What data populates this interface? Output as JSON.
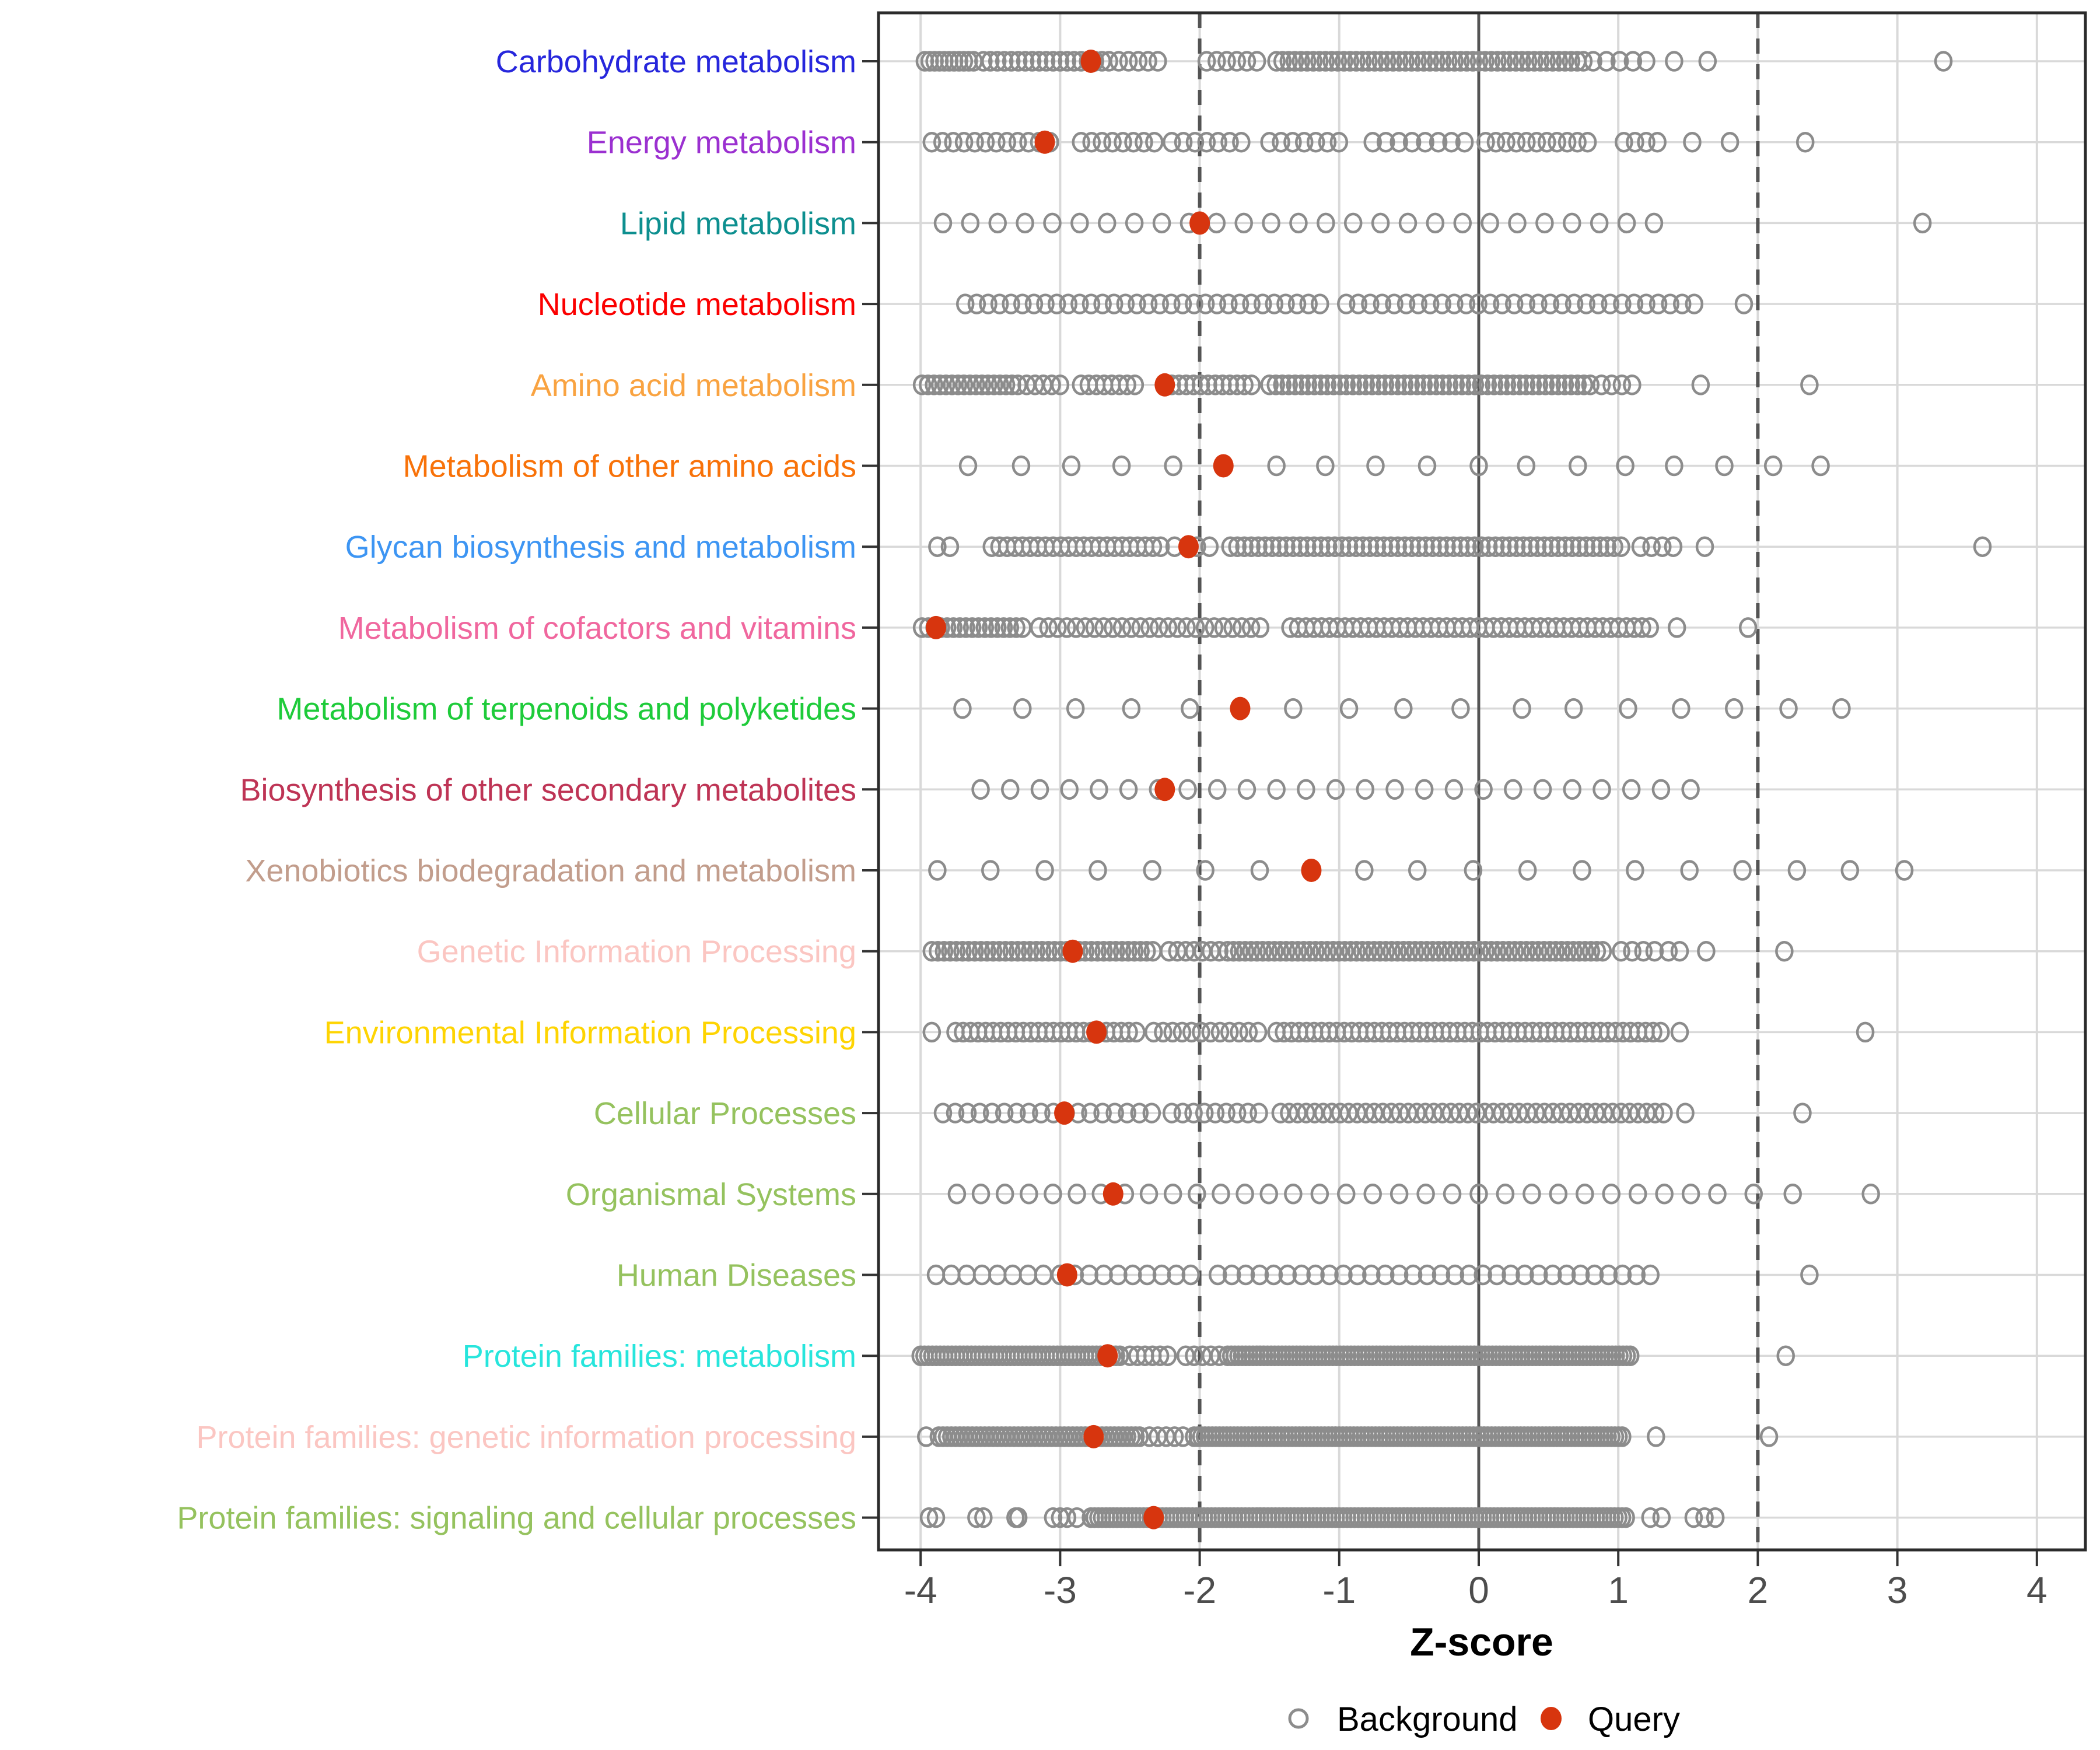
{
  "chart_data": {
    "type": "scatter",
    "title": "",
    "xlabel": "Z-score",
    "ylabel": "",
    "xlim": [
      -4.3,
      4.38
    ],
    "x_ticks": [
      -4,
      -3,
      -2,
      -1,
      0,
      1,
      2,
      3,
      4
    ],
    "grid": "major light gray, vertical at each integer and horizontal at each category row",
    "reference_lines": {
      "solid": [
        0
      ],
      "dashed": [
        -2,
        2
      ]
    },
    "legend_position": "bottom",
    "legend": [
      {
        "label": "Background",
        "marker": "open-circle",
        "color": "#8C8C8C"
      },
      {
        "label": "Query",
        "marker": "filled-circle",
        "color": "#D7350E"
      }
    ],
    "series_note": "Each category row is a 1-D strip of Background z-scores (open circles, values estimated from pixels; runs are [from,to,step] expansions) plus one red Query z-score (null = no query point shown).",
    "categories": [
      {
        "label": "Carbohydrate metabolism",
        "color": "#2626DC",
        "query": -2.78,
        "background_runs": [
          [
            -3.97,
            -3.62,
            0.035
          ],
          [
            -3.55,
            -2.62,
            0.05
          ],
          [
            -2.58,
            -2.3,
            0.07
          ],
          [
            -1.95,
            -1.52,
            0.072
          ],
          [
            -1.45,
            0.75,
            0.044
          ],
          [
            0.82,
            1.2,
            0.095
          ]
        ],
        "background_points": [
          1.4,
          1.64,
          3.33
        ]
      },
      {
        "label": "Energy metabolism",
        "color": "#9B30D0",
        "query": -3.11,
        "background_runs": [
          [
            -3.92,
            -3.0,
            0.077
          ],
          [
            -2.85,
            -2.32,
            0.075
          ],
          [
            -2.2,
            -1.62,
            0.083
          ],
          [
            -1.5,
            -0.92,
            0.083
          ],
          [
            -0.76,
            -0.1,
            0.094
          ],
          [
            0.05,
            0.78,
            0.073
          ],
          [
            1.04,
            1.28,
            0.08
          ]
        ],
        "background_points": [
          1.53,
          1.8,
          2.34
        ]
      },
      {
        "label": "Lipid metabolism",
        "color": "#0D8F8F",
        "query": -2.0,
        "background_runs": [
          [
            -3.84,
            1.32,
            0.196
          ]
        ],
        "background_points": [
          3.18
        ]
      },
      {
        "label": "Nucleotide metabolism",
        "color": "#FB0000",
        "query": null,
        "background_runs": [
          [
            -3.68,
            -1.12,
            0.082
          ],
          [
            -0.95,
            1.56,
            0.086
          ]
        ],
        "background_points": [
          1.9
        ]
      },
      {
        "label": "Amino acid metabolism",
        "color": "#F9A341",
        "query": -2.25,
        "background_runs": [
          [
            -3.99,
            -3.3,
            0.043
          ],
          [
            -3.24,
            -2.95,
            0.06
          ],
          [
            -2.85,
            -2.42,
            0.055
          ],
          [
            -2.2,
            -1.62,
            0.052
          ],
          [
            -1.5,
            0.8,
            0.046
          ],
          [
            0.88,
            1.1,
            0.073
          ]
        ],
        "background_points": [
          1.59,
          2.37
        ]
      },
      {
        "label": "Metabolism of other amino acids",
        "color": "#F87209",
        "query": -1.83,
        "background_runs": [],
        "background_points": [
          -3.66,
          -3.28,
          -2.92,
          -2.56,
          -2.19,
          -1.45,
          -1.1,
          -0.74,
          -0.37,
          0.0,
          0.34,
          0.71,
          1.05,
          1.4,
          1.76,
          2.11,
          2.45
        ]
      },
      {
        "label": "Glycan biosynthesis and metabolism",
        "color": "#3D95F3",
        "query": -2.08,
        "background_runs": [
          [
            -3.49,
            -2.28,
            0.055
          ],
          [
            -1.78,
            1.02,
            0.05
          ],
          [
            1.16,
            1.4,
            0.078
          ]
        ],
        "background_points": [
          -3.88,
          -3.79,
          -2.18,
          -2.02,
          -1.93,
          1.62,
          3.61
        ]
      },
      {
        "label": "Metabolism of cofactors and vitamins",
        "color": "#F0679E",
        "query": -3.89,
        "background_runs": [
          [
            -3.99,
            -3.25,
            0.045
          ],
          [
            -3.15,
            -1.55,
            0.066
          ],
          [
            -1.35,
            1.28,
            0.056
          ]
        ],
        "background_points": [
          1.42,
          1.93
        ]
      },
      {
        "label": "Metabolism of terpenoids and polyketides",
        "color": "#1ECB3A",
        "query": -1.71,
        "background_runs": [],
        "background_points": [
          -3.7,
          -3.27,
          -2.89,
          -2.49,
          -2.07,
          -1.33,
          -0.93,
          -0.54,
          -0.13,
          0.31,
          0.68,
          1.07,
          1.45,
          1.83,
          2.22,
          2.6
        ]
      },
      {
        "label": "Biosynthesis of other secondary metabolites",
        "color": "#BE3455",
        "query": -2.25,
        "background_runs": [
          [
            -3.57,
            1.7,
            0.212
          ]
        ],
        "background_points": []
      },
      {
        "label": "Xenobiotics biodegradation and metabolism",
        "color": "#C29D8C",
        "query": -1.2,
        "background_runs": [],
        "background_points": [
          -3.88,
          -3.5,
          -3.11,
          -2.73,
          -2.34,
          -1.96,
          -1.57,
          -0.82,
          -0.44,
          -0.04,
          0.35,
          0.74,
          1.12,
          1.51,
          1.89,
          2.28,
          2.66,
          3.05
        ]
      },
      {
        "label": "Genetic Information Processing",
        "color": "#FBC6C2",
        "query": -2.91,
        "background_runs": [
          [
            -3.92,
            -2.3,
            0.044
          ],
          [
            -2.22,
            -1.86,
            0.06
          ],
          [
            -1.8,
            0.92,
            0.042
          ],
          [
            1.02,
            1.26,
            0.08
          ],
          [
            1.36,
            1.44,
            0.08
          ]
        ],
        "background_points": [
          1.63,
          2.19
        ]
      },
      {
        "label": "Environmental Information Processing",
        "color": "#FED402",
        "query": -2.74,
        "background_runs": [
          [
            -3.75,
            -2.45,
            0.054
          ],
          [
            -2.33,
            -1.52,
            0.068
          ],
          [
            -1.45,
            1.33,
            0.054
          ]
        ],
        "background_points": [
          -3.92,
          1.44,
          2.77
        ]
      },
      {
        "label": "Cellular Processes",
        "color": "#95C25E",
        "query": -2.97,
        "background_runs": [
          [
            -3.84,
            -2.34,
            0.088
          ],
          [
            -2.2,
            -1.5,
            0.078
          ],
          [
            -1.42,
            1.33,
            0.061
          ]
        ],
        "background_points": [
          1.48,
          2.32
        ]
      },
      {
        "label": "Organismal Systems",
        "color": "#95C25E",
        "query": -2.62,
        "background_runs": [
          [
            -3.74,
            -1.5,
            0.172
          ],
          [
            -1.33,
            1.71,
            0.19
          ]
        ],
        "background_points": [
          1.97,
          2.25,
          2.81
        ]
      },
      {
        "label": "Human Diseases",
        "color": "#95C25E",
        "query": -2.95,
        "background_runs": [
          [
            -3.89,
            -3.12,
            0.11
          ],
          [
            -3.0,
            -2.06,
            0.104
          ],
          [
            -1.87,
            1.31,
            0.1
          ]
        ],
        "background_points": [
          2.37
        ]
      },
      {
        "label": "Protein families: metabolism",
        "color": "#27E5DC",
        "query": -2.66,
        "background_runs": [
          [
            -4.0,
            -2.56,
            0.028
          ],
          [
            -2.5,
            -2.18,
            0.054
          ],
          [
            -2.1,
            -1.86,
            0.06
          ],
          [
            -1.8,
            1.1,
            0.026
          ]
        ],
        "background_points": [
          2.2
        ]
      },
      {
        "label": "Protein families: genetic information processing",
        "color": "#FBC6C2",
        "query": -2.76,
        "background_runs": [
          [
            -3.87,
            -2.42,
            0.03
          ],
          [
            -2.36,
            -2.12,
            0.06
          ],
          [
            -2.04,
            1.05,
            0.026
          ]
        ],
        "background_points": [
          -3.96,
          1.27,
          2.08
        ]
      },
      {
        "label": "Protein families: signaling and cellular processes",
        "color": "#95C25E",
        "query": -2.33,
        "background_runs": [
          [
            -2.78,
            1.08,
            0.027
          ],
          [
            1.54,
            1.7,
            0.078
          ]
        ],
        "background_points": [
          -3.94,
          -3.89,
          -3.6,
          -3.55,
          -3.32,
          -3.3,
          -3.05,
          -3.0,
          -2.95,
          -2.88,
          1.23,
          1.31
        ]
      }
    ]
  },
  "style": {
    "background_marker_color": "#8C8C8C",
    "query_marker_color": "#D7350E",
    "grid_color": "#D9D9D9",
    "reference_line_color": "#545454",
    "panel_border_color": "#2B2B2B",
    "axis_tick_color": "#333333",
    "axis_text_color": "#4D4D4D",
    "axis_title_color": "#000000",
    "legend_text_color": "#000000"
  }
}
